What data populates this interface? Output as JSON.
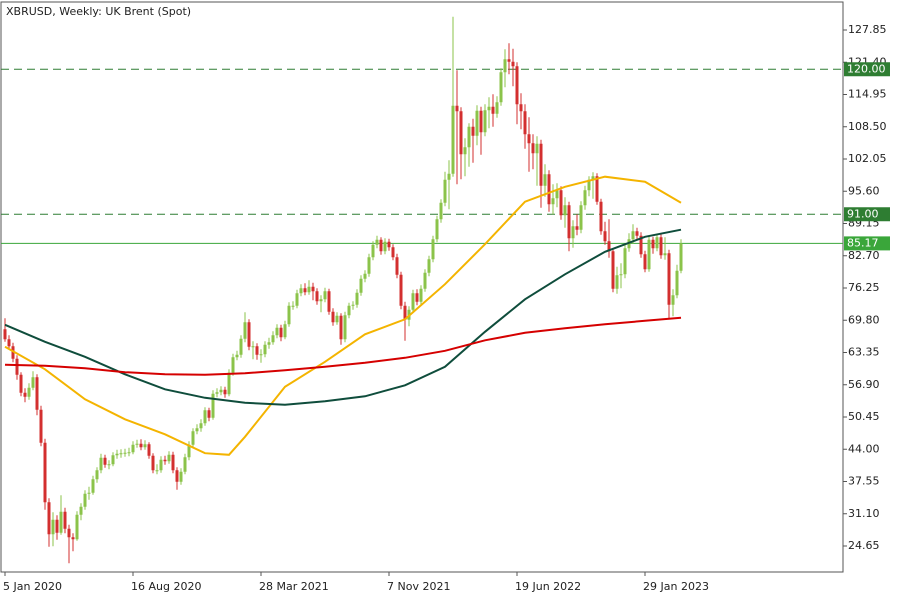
{
  "chart_data": {
    "type": "candlestick",
    "title": "XBRUSD, Weekly:  UK Brent (Spot)",
    "up_color": "#8bc34a",
    "down_color": "#d32f2f",
    "xlim": [
      -1,
      209.5
    ],
    "xticks": [
      {
        "value": 0,
        "label": "5 Jan 2020"
      },
      {
        "value": 32,
        "label": "16 Aug 2020"
      },
      {
        "value": 64,
        "label": "28 Mar 2021"
      },
      {
        "value": 96,
        "label": "7 Nov 2021"
      },
      {
        "value": 128,
        "label": "19 Jun 2022"
      },
      {
        "value": 160,
        "label": "29 Jan 2023"
      }
    ],
    "ylim": [
      19.45,
      133.45
    ],
    "yticks": [
      24.65,
      {
        "value": 31.1,
        "label": "31.10"
      },
      37.55,
      {
        "value": 44,
        "label": "44.00"
      },
      50.45,
      {
        "value": 56.9,
        "label": "56.90"
      },
      63.35,
      {
        "value": 69.8,
        "label": "69.80"
      },
      76.25,
      {
        "value": 82.7,
        "label": "82.70"
      },
      89.15,
      {
        "value": 95.6,
        "label": "95.60"
      },
      102.05,
      {
        "value": 108.5,
        "label": "108.50"
      },
      114.95,
      {
        "value": 121.4,
        "label": "121.40"
      },
      127.85
    ],
    "hlines": [
      {
        "value": 120,
        "label": "120.00",
        "color": "#2e7d32",
        "dashed": true
      },
      {
        "value": 91,
        "label": "91.00",
        "color": "#2e7d32",
        "dashed": true
      },
      {
        "value": 85.17,
        "label": "85.17",
        "color": "#3aa63a",
        "dashed": false
      }
    ],
    "candles": [
      [
        68.0,
        70.2,
        65.5,
        66.0
      ],
      [
        66.0,
        66.8,
        63.9,
        64.6
      ],
      [
        64.6,
        65.3,
        61.4,
        62.1
      ],
      [
        62.1,
        62.8,
        57.9,
        58.9
      ],
      [
        58.9,
        59.4,
        54.6,
        55.3
      ],
      [
        55.3,
        56.2,
        53.4,
        54.5
      ],
      [
        54.5,
        57.2,
        53.9,
        56.3
      ],
      [
        56.3,
        59.6,
        55.8,
        58.4
      ],
      [
        58.4,
        59.0,
        50.8,
        51.9
      ],
      [
        51.9,
        52.7,
        44.6,
        45.3
      ],
      [
        45.3,
        46.1,
        31.9,
        33.4
      ],
      [
        33.4,
        34.2,
        24.5,
        27.0
      ],
      [
        27.0,
        31.4,
        24.6,
        29.9
      ],
      [
        29.9,
        30.8,
        25.9,
        27.3
      ],
      [
        27.3,
        34.8,
        26.9,
        31.5
      ],
      [
        31.5,
        32.3,
        27.2,
        28.1
      ],
      [
        28.1,
        28.9,
        21.2,
        26.4
      ],
      [
        26.4,
        27.2,
        23.6,
        26.0
      ],
      [
        26.0,
        31.6,
        25.7,
        30.9
      ],
      [
        30.9,
        33.2,
        29.8,
        32.5
      ],
      [
        32.5,
        35.8,
        31.9,
        35.1
      ],
      [
        35.1,
        36.5,
        33.9,
        35.3
      ],
      [
        35.3,
        38.7,
        34.9,
        38.0
      ],
      [
        38.0,
        40.4,
        37.3,
        39.8
      ],
      [
        39.8,
        43.1,
        39.2,
        42.3
      ],
      [
        42.3,
        42.9,
        40.3,
        40.9
      ],
      [
        40.9,
        41.8,
        40.0,
        41.0
      ],
      [
        41.0,
        43.4,
        40.6,
        42.8
      ],
      [
        42.8,
        43.9,
        42.1,
        43.1
      ],
      [
        43.1,
        44.0,
        42.3,
        43.2
      ],
      [
        43.2,
        44.1,
        42.5,
        43.3
      ],
      [
        43.3,
        44.3,
        42.6,
        43.4
      ],
      [
        43.4,
        45.6,
        43.0,
        44.9
      ],
      [
        44.9,
        45.9,
        44.3,
        45.1
      ],
      [
        45.1,
        46.0,
        43.8,
        44.4
      ],
      [
        44.4,
        45.8,
        43.9,
        45.0
      ],
      [
        45.0,
        45.4,
        42.1,
        42.7
      ],
      [
        42.7,
        43.2,
        39.2,
        39.8
      ],
      [
        39.8,
        41.0,
        39.0,
        39.8
      ],
      [
        39.8,
        42.6,
        39.3,
        41.9
      ],
      [
        41.9,
        42.7,
        40.9,
        41.6
      ],
      [
        41.6,
        43.6,
        41.1,
        42.9
      ],
      [
        42.9,
        43.5,
        39.2,
        39.8
      ],
      [
        39.8,
        40.4,
        35.9,
        37.5
      ],
      [
        37.5,
        40.2,
        36.9,
        39.5
      ],
      [
        39.5,
        43.1,
        39.0,
        42.4
      ],
      [
        42.4,
        45.6,
        41.8,
        44.9
      ],
      [
        44.9,
        48.2,
        44.3,
        47.6
      ],
      [
        47.6,
        49.0,
        47.0,
        48.2
      ],
      [
        48.2,
        50.0,
        47.5,
        49.2
      ],
      [
        49.2,
        52.4,
        48.7,
        51.8
      ],
      [
        51.8,
        52.3,
        49.6,
        50.3
      ],
      [
        50.3,
        55.8,
        49.9,
        55.1
      ],
      [
        55.1,
        56.2,
        54.4,
        55.4
      ],
      [
        55.4,
        56.6,
        54.8,
        55.9
      ],
      [
        55.9,
        56.5,
        54.3,
        55.0
      ],
      [
        55.0,
        60.0,
        54.6,
        59.3
      ],
      [
        59.3,
        63.1,
        58.7,
        62.4
      ],
      [
        62.4,
        63.7,
        61.8,
        62.9
      ],
      [
        62.9,
        66.8,
        62.3,
        66.1
      ],
      [
        66.1,
        71.4,
        65.4,
        69.4
      ],
      [
        69.4,
        70.0,
        63.8,
        64.5
      ],
      [
        64.5,
        65.6,
        62.0,
        64.6
      ],
      [
        64.6,
        65.2,
        61.9,
        62.9
      ],
      [
        62.9,
        64.0,
        61.3,
        63.0
      ],
      [
        63.0,
        65.6,
        62.4,
        64.9
      ],
      [
        64.9,
        66.3,
        64.1,
        65.4
      ],
      [
        65.4,
        67.6,
        64.9,
        66.8
      ],
      [
        66.8,
        69.0,
        66.2,
        68.3
      ],
      [
        68.3,
        68.9,
        65.6,
        66.4
      ],
      [
        66.4,
        69.7,
        66.0,
        69.0
      ],
      [
        69.0,
        73.4,
        68.5,
        72.7
      ],
      [
        72.7,
        73.6,
        71.9,
        72.7
      ],
      [
        72.7,
        75.9,
        72.2,
        75.2
      ],
      [
        75.2,
        77.0,
        74.6,
        76.2
      ],
      [
        76.2,
        77.2,
        74.8,
        75.4
      ],
      [
        75.4,
        77.8,
        74.9,
        76.5
      ],
      [
        76.5,
        77.3,
        73.8,
        75.6
      ],
      [
        75.6,
        76.2,
        72.9,
        73.6
      ],
      [
        73.6,
        74.8,
        71.4,
        74.0
      ],
      [
        74.0,
        76.3,
        73.4,
        75.6
      ],
      [
        75.6,
        76.1,
        70.9,
        71.5
      ],
      [
        71.5,
        72.2,
        68.7,
        69.4
      ],
      [
        69.4,
        71.4,
        68.9,
        70.7
      ],
      [
        70.7,
        71.2,
        64.9,
        66.0
      ],
      [
        66.0,
        71.5,
        65.4,
        70.8
      ],
      [
        70.8,
        73.3,
        70.2,
        72.7
      ],
      [
        72.7,
        73.6,
        71.9,
        72.9
      ],
      [
        72.9,
        76.0,
        72.3,
        75.3
      ],
      [
        75.3,
        78.8,
        74.7,
        78.1
      ],
      [
        78.1,
        79.8,
        77.4,
        79.1
      ],
      [
        79.1,
        83.1,
        78.5,
        82.4
      ],
      [
        82.4,
        85.6,
        81.8,
        84.9
      ],
      [
        84.9,
        86.7,
        84.2,
        85.9
      ],
      [
        85.9,
        86.4,
        82.9,
        83.6
      ],
      [
        83.6,
        86.2,
        83.0,
        85.5
      ],
      [
        85.5,
        86.1,
        83.7,
        84.4
      ],
      [
        84.4,
        85.0,
        81.8,
        82.4
      ],
      [
        82.4,
        83.1,
        78.2,
        78.9
      ],
      [
        78.9,
        79.5,
        72.0,
        72.7
      ],
      [
        72.7,
        73.5,
        65.7,
        69.9
      ],
      [
        69.9,
        72.6,
        68.6,
        71.9
      ],
      [
        71.9,
        75.9,
        71.3,
        75.2
      ],
      [
        75.2,
        76.0,
        72.8,
        73.5
      ],
      [
        73.5,
        76.8,
        72.9,
        76.1
      ],
      [
        76.1,
        80.0,
        75.5,
        79.3
      ],
      [
        79.3,
        82.7,
        78.6,
        82.0
      ],
      [
        82.0,
        86.7,
        81.4,
        86.0
      ],
      [
        86.0,
        90.7,
        85.4,
        90.0
      ],
      [
        90.0,
        94.0,
        89.3,
        93.3
      ],
      [
        93.3,
        99.5,
        92.6,
        97.9
      ],
      [
        97.9,
        101.8,
        92.0,
        99.1
      ],
      [
        99.1,
        130.5,
        98.5,
        112.7
      ],
      [
        112.7,
        119.8,
        97.0,
        111.6
      ],
      [
        111.6,
        112.4,
        98.0,
        103.0
      ],
      [
        103.0,
        106.2,
        98.6,
        104.4
      ],
      [
        104.4,
        109.2,
        100.5,
        108.5
      ],
      [
        108.5,
        110.1,
        101.3,
        106.7
      ],
      [
        106.7,
        112.8,
        104.8,
        111.7
      ],
      [
        111.7,
        112.5,
        102.9,
        107.4
      ],
      [
        107.4,
        113.0,
        106.6,
        111.8
      ],
      [
        111.8,
        114.4,
        108.2,
        112.5
      ],
      [
        112.5,
        115.0,
        108.5,
        111.1
      ],
      [
        111.1,
        114.6,
        110.3,
        113.4
      ],
      [
        113.4,
        120.2,
        112.7,
        119.4
      ],
      [
        119.4,
        124.0,
        116.4,
        122.0
      ],
      [
        122.0,
        125.2,
        119.0,
        121.5
      ],
      [
        121.5,
        124.1,
        116.6,
        120.6
      ],
      [
        120.6,
        121.4,
        109.0,
        113.0
      ],
      [
        113.0,
        115.2,
        108.0,
        111.6
      ],
      [
        111.6,
        113.0,
        104.1,
        107.0
      ],
      [
        107.0,
        110.4,
        99.5,
        105.2
      ],
      [
        105.2,
        107.0,
        100.0,
        103.2
      ],
      [
        103.2,
        106.6,
        96.7,
        105.1
      ],
      [
        105.1,
        105.9,
        92.3,
        96.7
      ],
      [
        96.7,
        101.0,
        94.5,
        99.0
      ],
      [
        99.0,
        99.8,
        91.5,
        93.0
      ],
      [
        93.0,
        97.0,
        91.0,
        94.2
      ],
      [
        94.2,
        97.2,
        92.4,
        95.8
      ],
      [
        95.8,
        96.6,
        89.9,
        90.8
      ],
      [
        90.8,
        94.4,
        88.3,
        92.8
      ],
      [
        92.8,
        93.5,
        83.6,
        86.2
      ],
      [
        86.2,
        89.8,
        84.3,
        88.6
      ],
      [
        88.6,
        91.0,
        86.8,
        87.9
      ],
      [
        87.9,
        93.6,
        87.2,
        92.8
      ],
      [
        92.8,
        96.7,
        91.9,
        95.8
      ],
      [
        95.8,
        98.6,
        94.6,
        97.9
      ],
      [
        97.9,
        99.4,
        94.1,
        98.6
      ],
      [
        98.6,
        99.2,
        92.9,
        93.5
      ],
      [
        93.5,
        94.1,
        86.9,
        87.6
      ],
      [
        87.6,
        89.5,
        84.9,
        85.6
      ],
      [
        85.6,
        90.0,
        82.3,
        83.6
      ],
      [
        83.6,
        84.2,
        75.4,
        76.1
      ],
      [
        76.1,
        80.5,
        75.1,
        78.8
      ],
      [
        78.8,
        81.2,
        76.2,
        79.0
      ],
      [
        79.0,
        85.0,
        78.2,
        84.2
      ],
      [
        84.2,
        87.2,
        83.5,
        86.0
      ],
      [
        86.0,
        89.0,
        85.1,
        87.6
      ],
      [
        87.6,
        88.3,
        85.8,
        86.7
      ],
      [
        86.7,
        87.4,
        82.3,
        83.0
      ],
      [
        83.0,
        83.7,
        79.4,
        80.0
      ],
      [
        80.0,
        86.6,
        79.5,
        85.9
      ],
      [
        85.9,
        86.5,
        83.1,
        84.2
      ],
      [
        84.2,
        87.1,
        83.6,
        86.4
      ],
      [
        86.4,
        87.0,
        82.1,
        82.8
      ],
      [
        82.8,
        86.4,
        81.9,
        83.2
      ],
      [
        83.2,
        83.9,
        70.1,
        72.9
      ],
      [
        72.9,
        76.0,
        70.6,
        74.8
      ],
      [
        74.8,
        80.9,
        74.2,
        79.7
      ],
      [
        79.7,
        86.0,
        79.2,
        85.17
      ]
    ],
    "series": [
      {
        "color": "#f4b400",
        "x": [
          0,
          10,
          20,
          30,
          40,
          50,
          56,
          60,
          70,
          80,
          90,
          100,
          110,
          120,
          130,
          140,
          150,
          160,
          169
        ],
        "values": [
          64.5,
          60.0,
          54.0,
          50.0,
          47.0,
          43.2,
          42.9,
          46.5,
          56.5,
          61.5,
          67.0,
          70.0,
          77.0,
          85.0,
          93.5,
          96.5,
          98.5,
          97.5,
          93.3
        ]
      },
      {
        "color": "#0f4d3c",
        "x": [
          0,
          10,
          20,
          30,
          40,
          50,
          60,
          70,
          80,
          90,
          100,
          110,
          120,
          130,
          140,
          150,
          160,
          169
        ],
        "values": [
          68.9,
          65.5,
          62.5,
          59.0,
          56.0,
          54.3,
          53.3,
          52.9,
          53.6,
          54.6,
          56.8,
          60.5,
          67.5,
          74.0,
          79.0,
          83.5,
          86.5,
          87.9
        ]
      },
      {
        "color": "#d50000",
        "x": [
          0,
          10,
          20,
          30,
          40,
          50,
          60,
          70,
          80,
          90,
          100,
          110,
          120,
          130,
          140,
          150,
          160,
          169
        ],
        "values": [
          60.9,
          60.7,
          60.2,
          59.4,
          59.0,
          58.9,
          59.2,
          59.8,
          60.5,
          61.3,
          62.3,
          63.7,
          65.8,
          67.3,
          68.2,
          69.0,
          69.7,
          70.3
        ]
      }
    ]
  }
}
